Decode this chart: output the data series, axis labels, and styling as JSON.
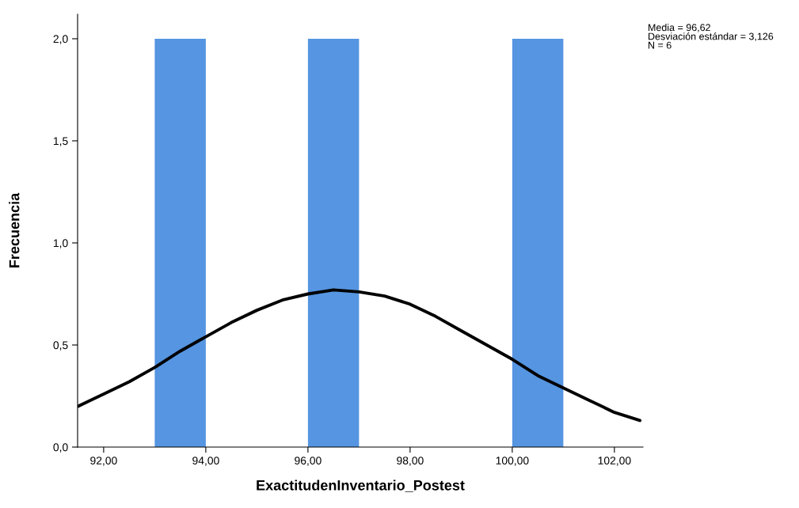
{
  "chart_data": {
    "type": "histogram",
    "xlabel": "ExactitudenInventario_Postest",
    "ylabel": "Frecuencia",
    "bins": [
      93,
      94,
      95,
      96,
      97,
      98,
      99,
      100,
      101
    ],
    "values": [
      2,
      0,
      0,
      2,
      0,
      0,
      0,
      2
    ],
    "color": "#5595e1",
    "series": [
      {
        "type": "line",
        "color": "#000000",
        "x": [
          91.5,
          92.0,
          92.5,
          93.0,
          93.5,
          94.0,
          94.5,
          95.0,
          95.5,
          96.0,
          96.5,
          97.0,
          97.5,
          98.0,
          98.5,
          99.0,
          99.5,
          100.0,
          100.5,
          101.0,
          101.5,
          102.0,
          102.5
        ],
        "values": [
          0.2,
          0.26,
          0.32,
          0.39,
          0.47,
          0.54,
          0.61,
          0.67,
          0.72,
          0.75,
          0.77,
          0.76,
          0.74,
          0.7,
          0.64,
          0.57,
          0.5,
          0.43,
          0.35,
          0.29,
          0.23,
          0.17,
          0.13
        ]
      }
    ],
    "xlim": [
      91.49,
      102.56
    ],
    "ylim": [
      0,
      2.12
    ],
    "xticks": [
      {
        "value": 92,
        "label": "92,00"
      },
      {
        "value": 94,
        "label": "94,00"
      },
      {
        "value": 96,
        "label": "96,00"
      },
      {
        "value": 98,
        "label": "98,00"
      },
      {
        "value": 100,
        "label": "100,00"
      },
      {
        "value": 102,
        "label": "102,00"
      }
    ],
    "yticks": [
      {
        "value": 0,
        "label": "0,0"
      },
      {
        "value": 0.5,
        "label": "0,5"
      },
      {
        "value": 1,
        "label": "1,0"
      },
      {
        "value": 1.5,
        "label": "1,5"
      },
      {
        "value": 2,
        "label": "2,0"
      }
    ],
    "annotations": [
      "Media = 96,62\nDesviación estándar = 3,126\nN = 6"
    ],
    "grid": false,
    "legend": false
  }
}
